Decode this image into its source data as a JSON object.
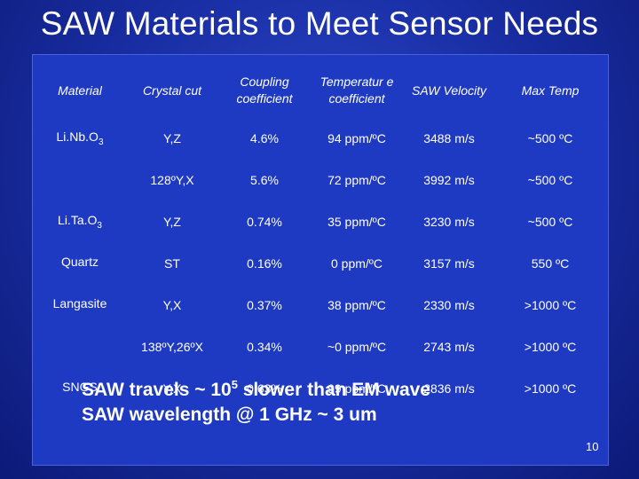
{
  "title": "SAW Materials to Meet Sensor Needs",
  "table": {
    "headers": [
      "Material",
      "Crystal cut",
      "Coupling coefficient",
      "Temperatur e coefficient",
      "SAW Velocity",
      "Max Temp"
    ],
    "rows": [
      {
        "material_base": "Li.Nb.O",
        "material_sub": "3",
        "cut": "Y,Z",
        "coupling": "4.6%",
        "temp_coeff": "94 ppm/ºC",
        "velocity": "3488 m/s",
        "max_temp": "~500 ºC"
      },
      {
        "material_base": "",
        "material_sub": "",
        "cut": "128ºY,X",
        "coupling": "5.6%",
        "temp_coeff": "72 ppm/ºC",
        "velocity": "3992 m/s",
        "max_temp": "~500 ºC"
      },
      {
        "material_base": "Li.Ta.O",
        "material_sub": "3",
        "cut": "Y,Z",
        "coupling": "0.74%",
        "temp_coeff": "35 ppm/ºC",
        "velocity": "3230 m/s",
        "max_temp": "~500 ºC"
      },
      {
        "material_base": "Quartz",
        "material_sub": "",
        "cut": "ST",
        "coupling": "0.16%",
        "temp_coeff": "0 ppm/ºC",
        "velocity": "3157 m/s",
        "max_temp": "550 ºC"
      },
      {
        "material_base": "Langasite",
        "material_sub": "",
        "cut": "Y,X",
        "coupling": "0.37%",
        "temp_coeff": "38 ppm/ºC",
        "velocity": "2330 m/s",
        "max_temp": ">1000 ºC"
      },
      {
        "material_base": "",
        "material_sub": "",
        "cut": "138ºY,26ºX",
        "coupling": "0.34%",
        "temp_coeff": "~0 ppm/ºC",
        "velocity": "2743 m/s",
        "max_temp": ">1000 ºC"
      },
      {
        "material_base": "SNGS",
        "material_sub": "",
        "cut": "Y,X",
        "coupling": "0.63%",
        "temp_coeff": "99 ppm/ºC",
        "velocity": "2836 m/s",
        "max_temp": ">1000 ºC"
      }
    ]
  },
  "notes": {
    "line1_pre": "SAW travels ~ 10",
    "line1_sup": "5",
    "line1_post": " slower than EM wave",
    "line2": "SAW wavelength @ 1 GHz ~ 3 um"
  },
  "page_number": "10"
}
